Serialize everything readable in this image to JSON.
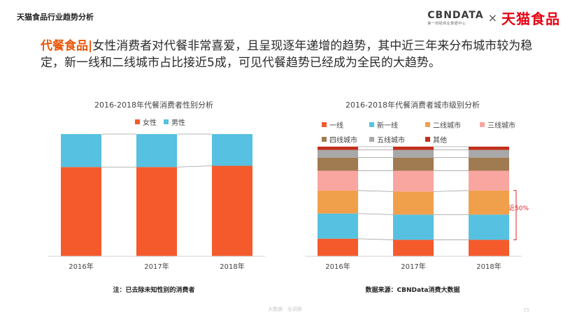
{
  "header": {
    "section_title": "天猫食品行业趋势分析"
  },
  "brand": {
    "cbn_name": "CBNDATA",
    "cbn_sub": "第一财经商业数据中心",
    "x": "×",
    "partner": "天猫食品"
  },
  "headline": {
    "highlight": "代餐食品",
    "separator": "|",
    "text": "女性消费者对代餐非常喜爱，且呈现逐年递增的趋势，其中近三年来分布城市较为稳定，新一线和二线城市占比接近5成，可见代餐趋势已经成为全民的大趋势。"
  },
  "colors": {
    "female": "#f55a2c",
    "male": "#56c1e0",
    "tier1": "#f55a2c",
    "new_tier1": "#56c1e0",
    "tier2": "#f0a04a",
    "tier3": "#f9a5a0",
    "tier4": "#a07a50",
    "tier5": "#a8a8a8",
    "other": "#c0301c"
  },
  "chart_data": [
    {
      "type": "bar",
      "stacked": true,
      "title": "2016-2018年代餐消费者性别分析",
      "categories": [
        "2016年",
        "2017年",
        "2018年"
      ],
      "series": [
        {
          "name": "女性",
          "color": "#f55a2c",
          "values": [
            0.73,
            0.73,
            0.74
          ]
        },
        {
          "name": "男性",
          "color": "#56c1e0",
          "values": [
            0.27,
            0.27,
            0.26
          ]
        }
      ],
      "ylim": [
        0,
        1
      ],
      "legend_position": "top",
      "note": "注：已去除未知性别的消费者"
    },
    {
      "type": "bar",
      "stacked": true,
      "title": "2016-2018年代餐消费者城市级别分析",
      "categories": [
        "2016年",
        "2017年",
        "2018年"
      ],
      "series": [
        {
          "name": "一线",
          "color": "#f55a2c",
          "values": [
            0.16,
            0.15,
            0.15
          ]
        },
        {
          "name": "新一线",
          "color": "#56c1e0",
          "values": [
            0.23,
            0.23,
            0.23
          ]
        },
        {
          "name": "二线城市",
          "color": "#f0a04a",
          "values": [
            0.21,
            0.21,
            0.22
          ]
        },
        {
          "name": "三线城市",
          "color": "#f9a5a0",
          "values": [
            0.18,
            0.19,
            0.18
          ]
        },
        {
          "name": "四线城市",
          "color": "#a07a50",
          "values": [
            0.12,
            0.12,
            0.12
          ]
        },
        {
          "name": "五线城市",
          "color": "#a8a8a8",
          "values": [
            0.07,
            0.07,
            0.07
          ]
        },
        {
          "name": "其他",
          "color": "#c0301c",
          "values": [
            0.03,
            0.03,
            0.03
          ]
        }
      ],
      "ylim": [
        0,
        1
      ],
      "legend_position": "top",
      "annotation": "近50%",
      "source": "数据来源：CBNData消费大数据"
    }
  ],
  "footer": {
    "text": "大数据 · 全洞察",
    "page": "15"
  }
}
